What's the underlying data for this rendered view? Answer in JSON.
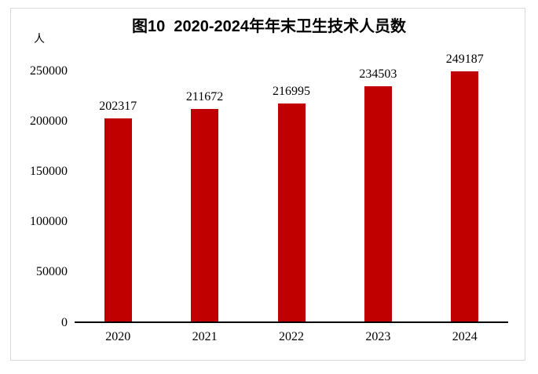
{
  "chart_data": {
    "type": "bar",
    "title": "图10  2020-2024年年末卫生技术人员数",
    "y_unit": "人",
    "categories": [
      "2020",
      "2021",
      "2022",
      "2023",
      "2024"
    ],
    "values": [
      202317,
      211672,
      216995,
      234503,
      249187
    ],
    "data_labels": [
      "202317",
      "211672",
      "216995",
      "234503",
      "249187"
    ],
    "yticks": [
      0,
      50000,
      100000,
      150000,
      200000,
      250000
    ],
    "ylim": [
      0,
      250000
    ],
    "xlabel": "",
    "ylabel": "人",
    "bar_color": "#c00000",
    "axis_color": "#000000",
    "frame_border_color": "#d9d9d9",
    "grid": false,
    "legend_position": "none"
  }
}
